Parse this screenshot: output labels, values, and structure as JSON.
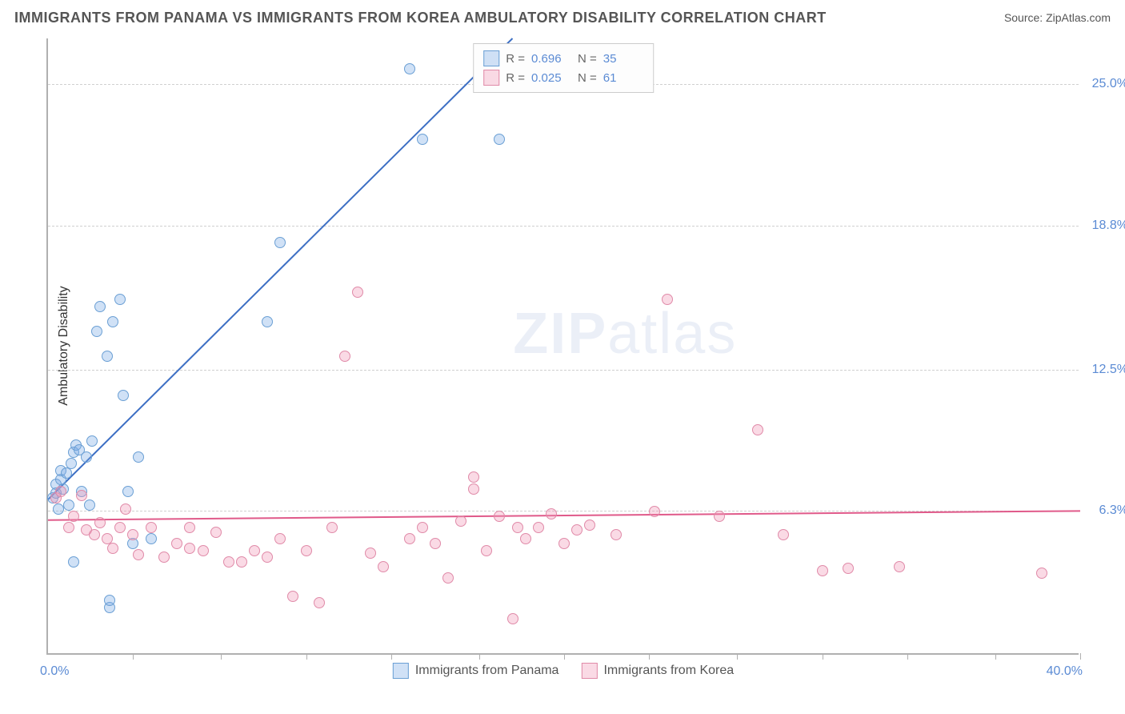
{
  "title": "IMMIGRANTS FROM PANAMA VS IMMIGRANTS FROM KOREA AMBULATORY DISABILITY CORRELATION CHART",
  "source": "Source: ZipAtlas.com",
  "watermark_left": "ZIP",
  "watermark_right": "atlas",
  "chart": {
    "type": "scatter",
    "ylabel": "Ambulatory Disability",
    "xlim": [
      0,
      40
    ],
    "ylim": [
      0,
      27
    ],
    "yticks": [
      {
        "value": 6.3,
        "label": "6.3%"
      },
      {
        "value": 12.5,
        "label": "12.5%"
      },
      {
        "value": 18.8,
        "label": "18.8%"
      },
      {
        "value": 25.0,
        "label": "25.0%"
      }
    ],
    "xticks_minor": [
      3.3,
      6.7,
      10,
      13.3,
      16.7,
      20,
      23.3,
      26.7,
      30,
      33.3,
      36.7,
      40
    ],
    "xaxis_min_label": "0.0%",
    "xaxis_max_label": "40.0%",
    "background_color": "#ffffff",
    "grid_color": "#d0d0d0",
    "axis_color": "#b0b0b0",
    "tick_label_color": "#5b8bd4",
    "series": [
      {
        "name": "Immigrants from Panama",
        "fill_color": "rgba(120,170,230,0.35)",
        "stroke_color": "#6a9fd4",
        "line_color": "#3d6fc4",
        "R": "0.696",
        "N": "35",
        "regression": {
          "x1": 0,
          "y1": 6.8,
          "x2": 18.0,
          "y2": 27.0
        },
        "points": [
          [
            0.2,
            6.8
          ],
          [
            0.3,
            7.4
          ],
          [
            0.3,
            7.0
          ],
          [
            0.4,
            6.3
          ],
          [
            0.5,
            7.6
          ],
          [
            0.5,
            8.0
          ],
          [
            0.6,
            7.2
          ],
          [
            0.7,
            7.9
          ],
          [
            0.8,
            6.5
          ],
          [
            0.9,
            8.3
          ],
          [
            1.0,
            8.8
          ],
          [
            1.1,
            9.1
          ],
          [
            1.2,
            8.9
          ],
          [
            1.3,
            7.1
          ],
          [
            1.5,
            8.6
          ],
          [
            1.7,
            9.3
          ],
          [
            1.9,
            14.1
          ],
          [
            2.0,
            15.2
          ],
          [
            2.3,
            13.0
          ],
          [
            2.5,
            14.5
          ],
          [
            2.8,
            15.5
          ],
          [
            2.9,
            11.3
          ],
          [
            3.1,
            7.1
          ],
          [
            3.3,
            4.8
          ],
          [
            3.5,
            8.6
          ],
          [
            4.0,
            5.0
          ],
          [
            2.4,
            2.0
          ],
          [
            2.4,
            2.3
          ],
          [
            8.5,
            14.5
          ],
          [
            9.0,
            18.0
          ],
          [
            14.0,
            25.6
          ],
          [
            14.5,
            22.5
          ],
          [
            17.5,
            22.5
          ],
          [
            1.0,
            4.0
          ],
          [
            1.6,
            6.5
          ]
        ]
      },
      {
        "name": "Immigrants from Korea",
        "fill_color": "rgba(240,150,180,0.35)",
        "stroke_color": "#e08aa8",
        "line_color": "#e05a8a",
        "R": "0.025",
        "N": "61",
        "regression": {
          "x1": 0,
          "y1": 5.9,
          "x2": 40,
          "y2": 6.3
        },
        "points": [
          [
            0.3,
            6.8
          ],
          [
            0.5,
            7.1
          ],
          [
            0.8,
            5.5
          ],
          [
            1.0,
            6.0
          ],
          [
            1.3,
            6.9
          ],
          [
            1.5,
            5.4
          ],
          [
            1.8,
            5.2
          ],
          [
            2.0,
            5.7
          ],
          [
            2.3,
            5.0
          ],
          [
            2.5,
            4.6
          ],
          [
            2.8,
            5.5
          ],
          [
            3.0,
            6.3
          ],
          [
            3.3,
            5.2
          ],
          [
            3.5,
            4.3
          ],
          [
            4.0,
            5.5
          ],
          [
            4.5,
            4.2
          ],
          [
            5.0,
            4.8
          ],
          [
            5.5,
            4.6
          ],
          [
            6.0,
            4.5
          ],
          [
            6.5,
            5.3
          ],
          [
            7.0,
            4.0
          ],
          [
            7.5,
            4.0
          ],
          [
            8.0,
            4.5
          ],
          [
            8.5,
            4.2
          ],
          [
            9.0,
            5.0
          ],
          [
            9.5,
            2.5
          ],
          [
            10.0,
            4.5
          ],
          [
            10.5,
            2.2
          ],
          [
            11.0,
            5.5
          ],
          [
            11.5,
            13.0
          ],
          [
            12.0,
            15.8
          ],
          [
            12.5,
            4.4
          ],
          [
            13.0,
            3.8
          ],
          [
            14.0,
            5.0
          ],
          [
            14.5,
            5.5
          ],
          [
            15.0,
            4.8
          ],
          [
            15.5,
            3.3
          ],
          [
            16.0,
            5.8
          ],
          [
            16.5,
            7.2
          ],
          [
            16.5,
            7.7
          ],
          [
            17.0,
            4.5
          ],
          [
            17.5,
            6.0
          ],
          [
            18.0,
            1.5
          ],
          [
            18.5,
            5.0
          ],
          [
            19.0,
            5.5
          ],
          [
            19.5,
            6.1
          ],
          [
            20.0,
            4.8
          ],
          [
            20.5,
            5.4
          ],
          [
            21.0,
            5.6
          ],
          [
            22.0,
            5.2
          ],
          [
            23.5,
            6.2
          ],
          [
            24.0,
            15.5
          ],
          [
            27.5,
            9.8
          ],
          [
            28.5,
            5.2
          ],
          [
            30.0,
            3.6
          ],
          [
            31.0,
            3.7
          ],
          [
            33.0,
            3.8
          ],
          [
            26.0,
            6.0
          ],
          [
            38.5,
            3.5
          ],
          [
            18.2,
            5.5
          ],
          [
            5.5,
            5.5
          ]
        ]
      }
    ]
  },
  "legend": {
    "r_label": "R =",
    "n_label": "N ="
  }
}
